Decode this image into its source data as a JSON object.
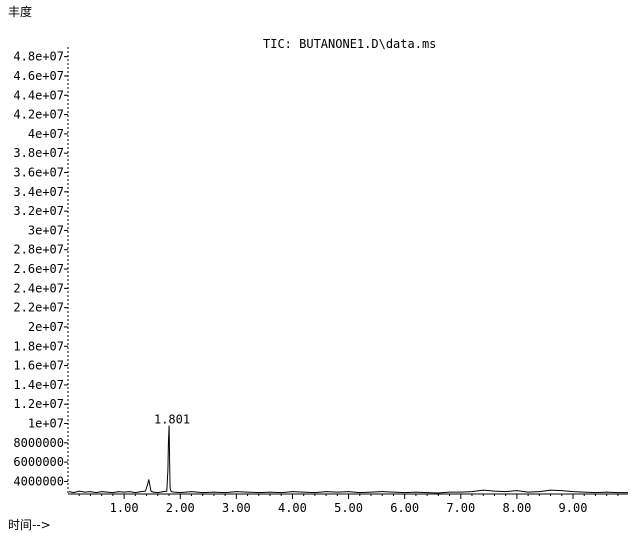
{
  "chart_data": {
    "type": "line",
    "title": "TIC: BUTANONE1.D\\data.ms",
    "ylabel": "丰度",
    "xlabel": "时间-->",
    "xlim": [
      0.0,
      9.98
    ],
    "ylim": [
      2700000,
      49000000
    ],
    "y_ticks": [
      {
        "value": 48000000,
        "label": "4.8e+07"
      },
      {
        "value": 46000000,
        "label": "4.6e+07"
      },
      {
        "value": 44000000,
        "label": "4.4e+07"
      },
      {
        "value": 42000000,
        "label": "4.2e+07"
      },
      {
        "value": 40000000,
        "label": "4e+07"
      },
      {
        "value": 38000000,
        "label": "3.8e+07"
      },
      {
        "value": 36000000,
        "label": "3.6e+07"
      },
      {
        "value": 34000000,
        "label": "3.4e+07"
      },
      {
        "value": 32000000,
        "label": "3.2e+07"
      },
      {
        "value": 30000000,
        "label": "3e+07"
      },
      {
        "value": 28000000,
        "label": "2.8e+07"
      },
      {
        "value": 26000000,
        "label": "2.6e+07"
      },
      {
        "value": 24000000,
        "label": "2.4e+07"
      },
      {
        "value": 22000000,
        "label": "2.2e+07"
      },
      {
        "value": 20000000,
        "label": "2e+07"
      },
      {
        "value": 18000000,
        "label": "1.8e+07"
      },
      {
        "value": 16000000,
        "label": "1.6e+07"
      },
      {
        "value": 14000000,
        "label": "1.4e+07"
      },
      {
        "value": 12000000,
        "label": "1.2e+07"
      },
      {
        "value": 10000000,
        "label": "1e+07"
      },
      {
        "value": 8000000,
        "label": "8000000"
      },
      {
        "value": 6000000,
        "label": "6000000"
      },
      {
        "value": 4000000,
        "label": "4000000"
      }
    ],
    "x_ticks": [
      {
        "value": 1.0,
        "label": "1.00"
      },
      {
        "value": 2.0,
        "label": "2.00"
      },
      {
        "value": 3.0,
        "label": "3.00"
      },
      {
        "value": 4.0,
        "label": "4.00"
      },
      {
        "value": 5.0,
        "label": "5.00"
      },
      {
        "value": 6.0,
        "label": "6.00"
      },
      {
        "value": 7.0,
        "label": "7.00"
      },
      {
        "value": 8.0,
        "label": "8.00"
      },
      {
        "value": 9.0,
        "label": "9.00"
      }
    ],
    "series": [
      {
        "x": [
          0.02,
          0.1,
          0.2,
          0.3,
          0.4,
          0.5,
          0.6,
          0.7,
          0.8,
          0.9,
          1.0,
          1.1,
          1.2,
          1.3,
          1.38,
          1.42,
          1.44,
          1.46,
          1.48,
          1.52,
          1.6,
          1.7,
          1.76,
          1.78,
          1.79,
          1.801,
          1.81,
          1.82,
          1.84,
          1.9,
          2.0,
          2.2,
          2.4,
          2.6,
          2.8,
          3.0,
          3.2,
          3.4,
          3.6,
          3.8,
          4.0,
          4.2,
          4.4,
          4.6,
          4.8,
          5.0,
          5.2,
          5.4,
          5.6,
          5.8,
          6.0,
          6.2,
          6.4,
          6.6,
          6.8,
          7.0,
          7.2,
          7.4,
          7.6,
          7.8,
          8.0,
          8.2,
          8.4,
          8.6,
          8.8,
          9.0,
          9.2,
          9.4,
          9.6,
          9.8,
          9.98
        ],
        "y": [
          2950000,
          2850000,
          3000000,
          2900000,
          2950000,
          2850000,
          2950000,
          2900000,
          2850000,
          2950000,
          2900000,
          2950000,
          2850000,
          2950000,
          3000000,
          3700000,
          4200000,
          3600000,
          3000000,
          2900000,
          2850000,
          2950000,
          3000000,
          5200000,
          8000000,
          9800000,
          6200000,
          3300000,
          2950000,
          2900000,
          2850000,
          2950000,
          2850000,
          2900000,
          2850000,
          2950000,
          2900000,
          2850000,
          2900000,
          2850000,
          2950000,
          2900000,
          2850000,
          2950000,
          2900000,
          2950000,
          2850000,
          2900000,
          2950000,
          2900000,
          2850000,
          2900000,
          2850000,
          2800000,
          2900000,
          2900000,
          2950000,
          3100000,
          3000000,
          2950000,
          3050000,
          2900000,
          2950000,
          3100000,
          3050000,
          2950000,
          2900000,
          2850000,
          2900000,
          2850000,
          2850000
        ]
      }
    ],
    "annotations": [
      {
        "x": 1.801,
        "y": 9800000,
        "label": "1.801"
      }
    ]
  }
}
